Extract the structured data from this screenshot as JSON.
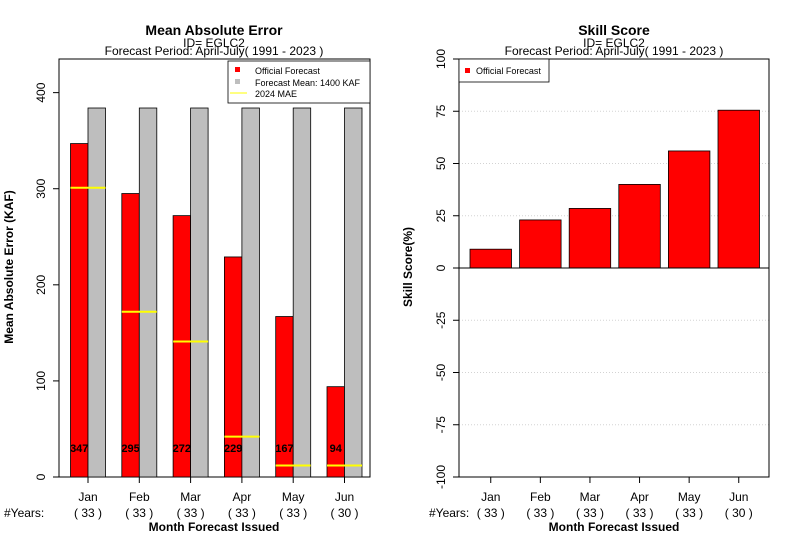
{
  "chart_data": [
    {
      "type": "bar",
      "title": "Mean Absolute Error",
      "subtitle_id": "ID= EGLC2",
      "subtitle_period": "Forecast Period: April-July( 1991 - 2023 )",
      "ylabel": "Mean Absolute Error (KAF)",
      "xlabel": "Month Forecast Issued",
      "years_label": "#Years:",
      "categories": [
        "Jan",
        "Feb",
        "Mar",
        "Apr",
        "May",
        "Jun"
      ],
      "years": [
        "( 33 )",
        "( 33 )",
        "( 33 )",
        "( 33 )",
        "( 33 )",
        "( 30 )"
      ],
      "ylim": [
        0,
        435
      ],
      "yticks": [
        0,
        100,
        200,
        300,
        400
      ],
      "legend_position": "top-right",
      "series": [
        {
          "name": "Official Forecast",
          "color": "#ff0000",
          "values": [
            347,
            295,
            272,
            229,
            167,
            94
          ],
          "value_labels": [
            "347",
            "295",
            "272",
            "229",
            "167",
            "94"
          ]
        },
        {
          "name": "Forecast Mean: 1400 KAF",
          "color": "#bebebe",
          "values": [
            384,
            384,
            384,
            384,
            384,
            384
          ]
        },
        {
          "name": " 2024  MAE",
          "color": "#ffff00",
          "values": [
            301,
            172,
            141,
            42,
            12,
            12
          ]
        }
      ]
    },
    {
      "type": "bar",
      "title": "Skill Score",
      "subtitle_id": "ID= EGLC2",
      "subtitle_period": "Forecast Period: April-July( 1991 - 2023 )",
      "ylabel": "Skill Score(%)",
      "xlabel": "Month Forecast Issued",
      "years_label": "#Years:",
      "categories": [
        "Jan",
        "Feb",
        "Mar",
        "Apr",
        "May",
        "Jun"
      ],
      "years": [
        "( 33 )",
        "( 33 )",
        "( 33 )",
        "( 33 )",
        "( 33 )",
        "( 30 )"
      ],
      "ylim": [
        -100,
        100
      ],
      "yticks": [
        -100,
        -75,
        -50,
        -25,
        0,
        25,
        50,
        75,
        100
      ],
      "grid": true,
      "legend_position": "top-left",
      "series": [
        {
          "name": "Official Forecast",
          "color": "#ff0000",
          "values": [
            9,
            23,
            28.5,
            40,
            56,
            75.5
          ]
        }
      ]
    }
  ]
}
